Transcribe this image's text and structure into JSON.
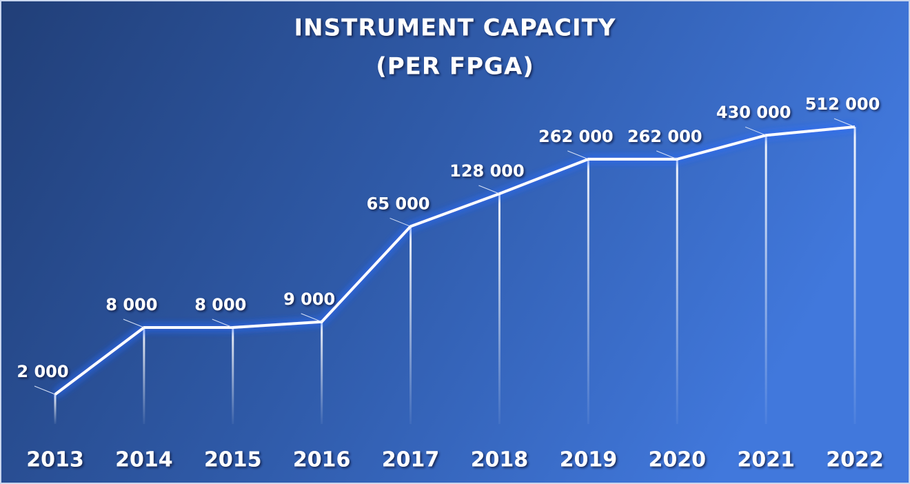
{
  "chart_data": {
    "type": "line",
    "title": "INSTRUMENT CAPACITY",
    "subtitle": "(PER FPGA)",
    "categories": [
      "2013",
      "2014",
      "2015",
      "2016",
      "2017",
      "2018",
      "2019",
      "2020",
      "2021",
      "2022"
    ],
    "values": [
      2000,
      8000,
      8000,
      9000,
      65000,
      128000,
      262000,
      262000,
      430000,
      512000
    ],
    "value_labels": [
      "2 000",
      "8 000",
      "8 000",
      "9 000",
      "65 000",
      "128 000",
      "262 000",
      "262 000",
      "430 000",
      "512 000"
    ],
    "log_scale": true,
    "color": "#ffffff"
  }
}
